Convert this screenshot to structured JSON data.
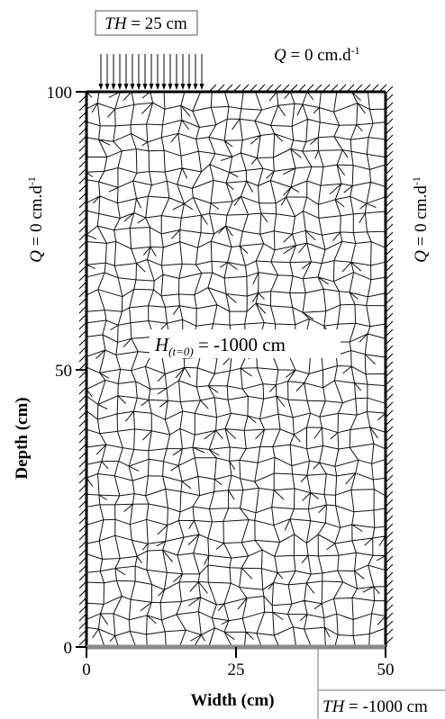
{
  "top_condition": {
    "variable": "TH",
    "text": " = 25 cm"
  },
  "flux_top": {
    "variable": "Q",
    "text": " = 0 cm.d",
    "superscript": "-1"
  },
  "flux_left": {
    "variable": "Q",
    "text": " = 0 cm.d",
    "superscript": "-1"
  },
  "flux_right": {
    "variable": "Q",
    "text": " = 0 cm.d",
    "superscript": "-1"
  },
  "initial_condition": {
    "variable": "H",
    "subscript": "(t=0)",
    "text": " = -1000 cm"
  },
  "bottom_condition": {
    "variable": "TH",
    "text": " = -1000 cm"
  },
  "axes": {
    "y_label": "Depth (cm)",
    "x_label": "Width (cm)",
    "y_ticks": [
      "100",
      "50",
      "0"
    ],
    "x_ticks": [
      "0",
      "25",
      "50"
    ]
  },
  "colors": {
    "boundary": "#000000",
    "bottom_boundary": "#8a8a8a",
    "mesh": "#111111"
  }
}
